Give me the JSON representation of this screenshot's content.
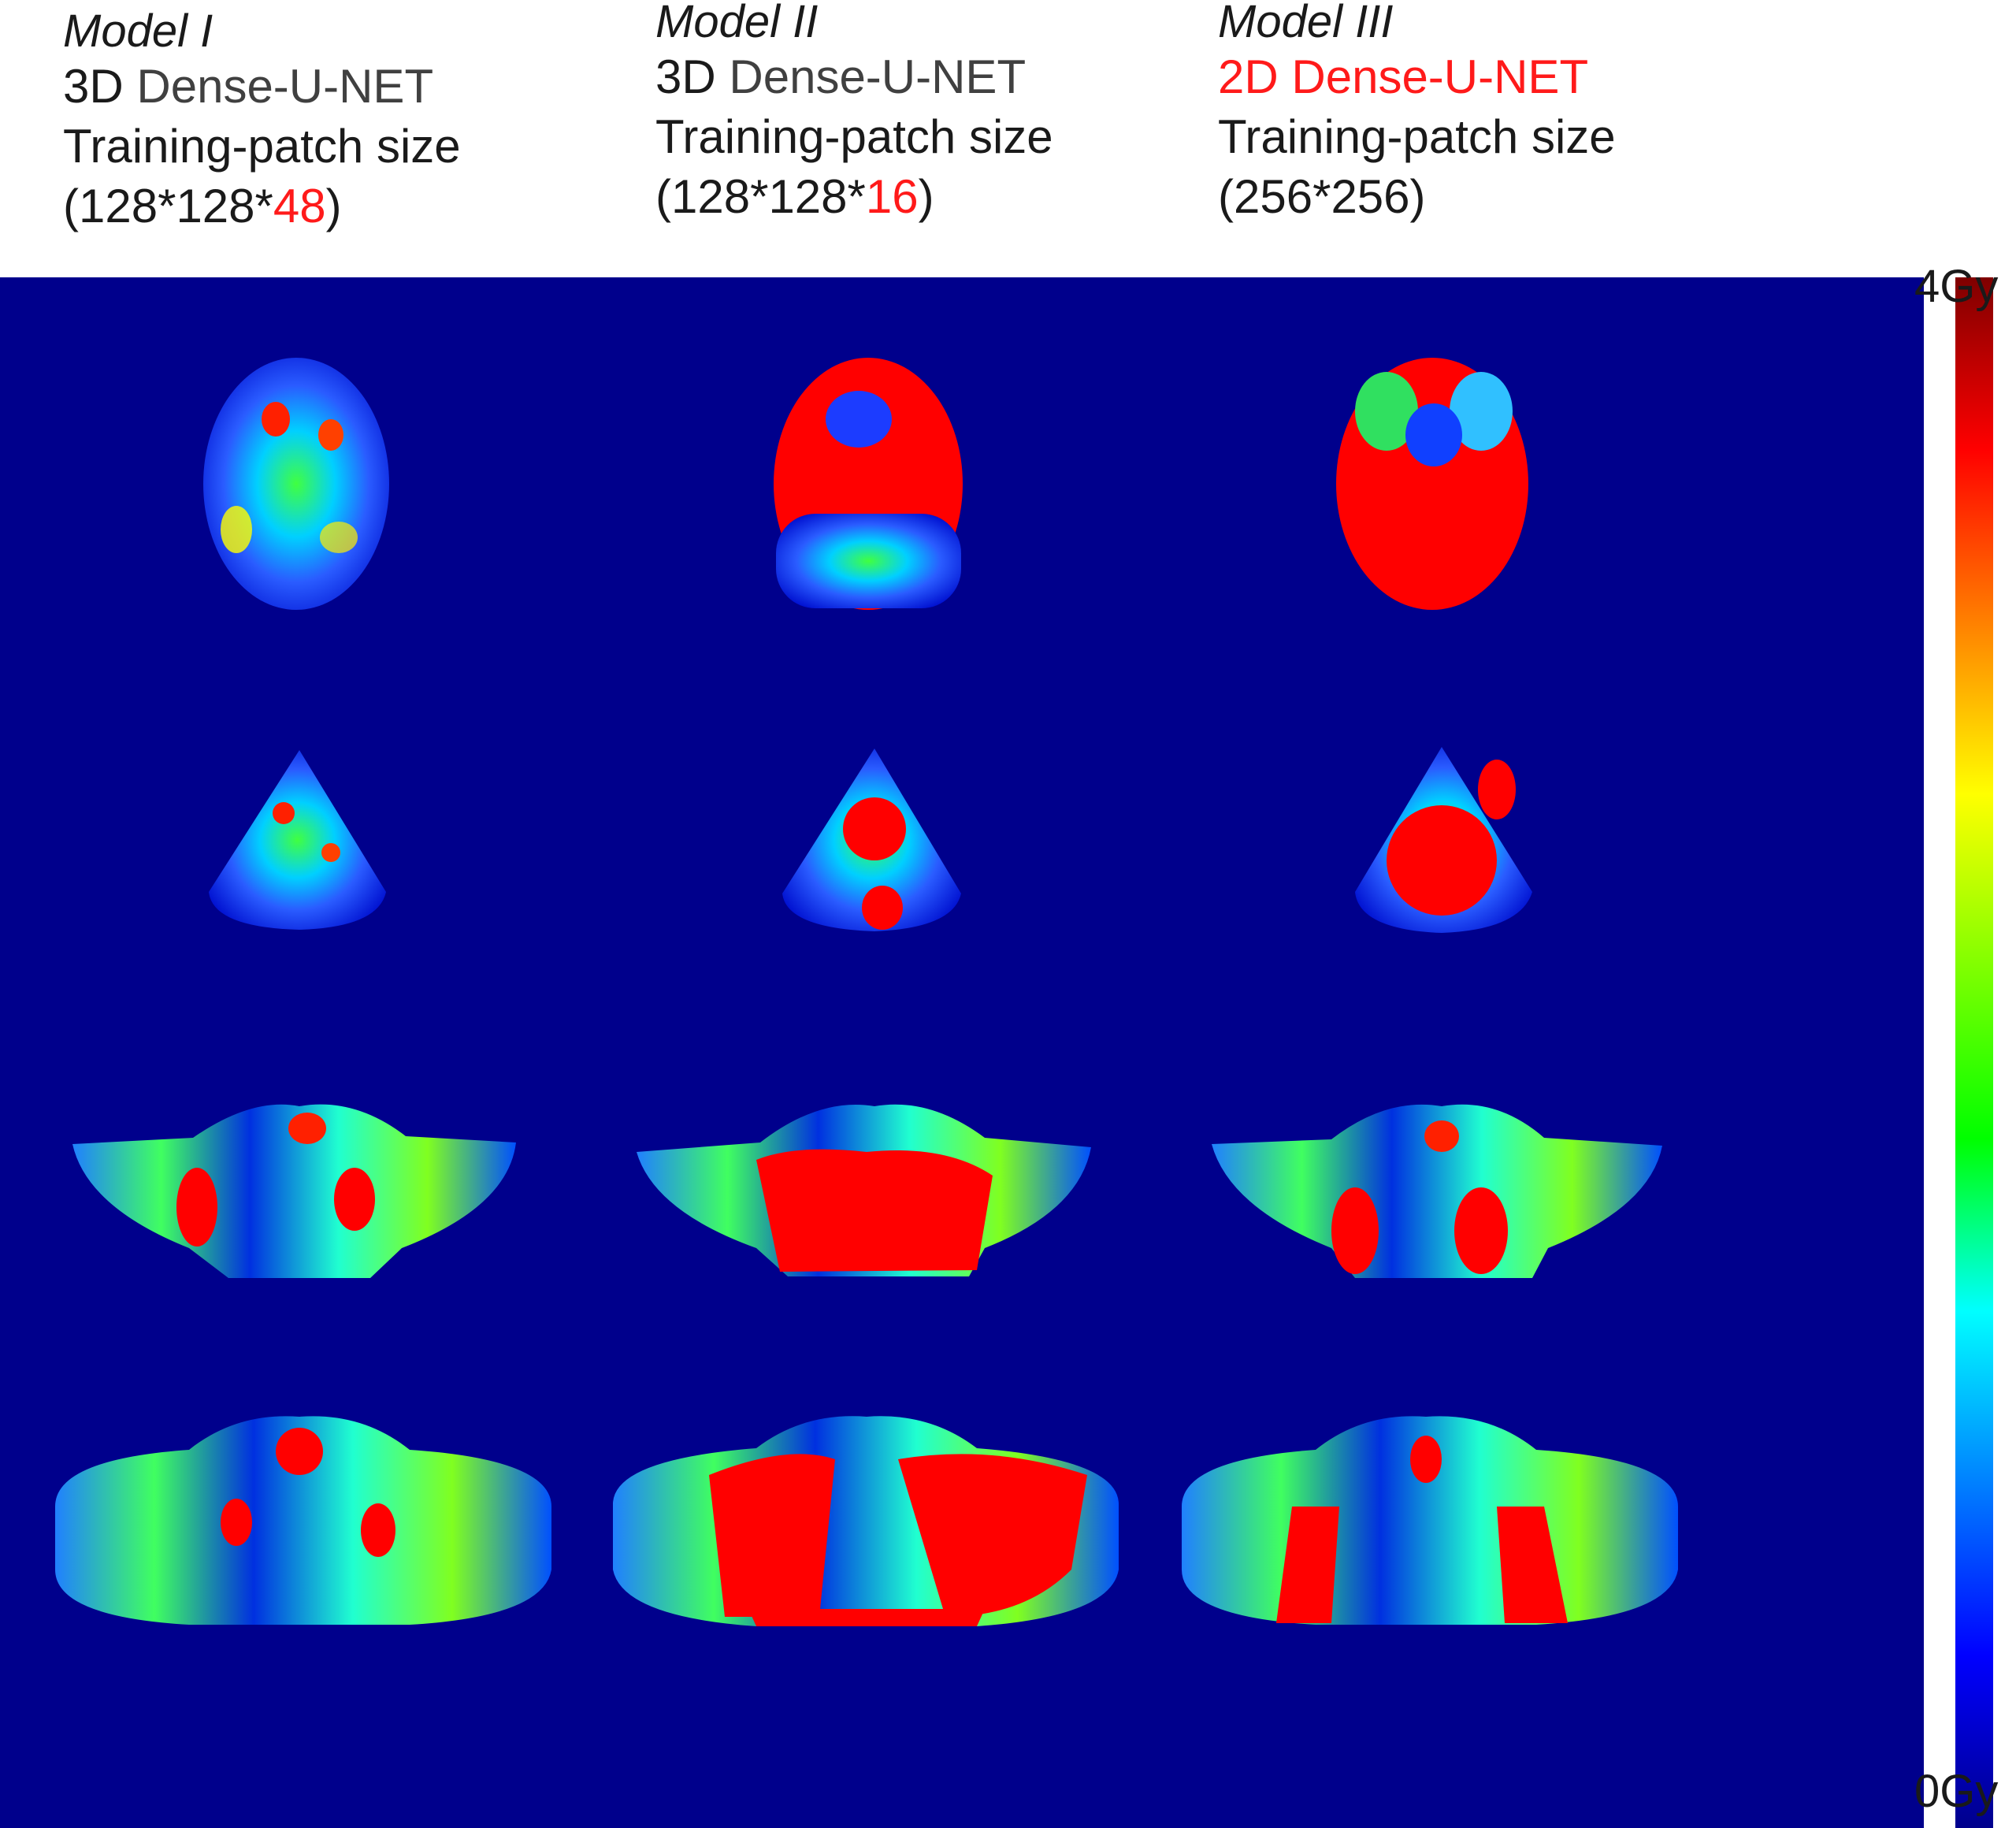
{
  "columns": [
    {
      "model": "Model  I",
      "arch_prefix": "3D",
      "arch_rest": " Dense-U-NET",
      "patch_label": "Training-patch size",
      "patch_open": "(128*128*",
      "patch_highlight": "48",
      "patch_close": ")"
    },
    {
      "model": "Model  II",
      "arch_prefix": "3D",
      "arch_rest": " Dense-U-NET",
      "patch_label": "Training-patch size",
      "patch_open": "(128*128*",
      "patch_highlight": "16",
      "patch_close": ")"
    },
    {
      "model": "Model  III",
      "arch_full": "2D Dense-U-NET",
      "patch_label": "Training-patch size",
      "patch_value": "(256*256)"
    }
  ],
  "colorbar": {
    "max_label": "4Gy",
    "min_label": "0Gy",
    "stops": [
      "#7f0000",
      "#ff0000",
      "#ff8000",
      "#ffff00",
      "#80ff00",
      "#00ff00",
      "#00ffff",
      "#0080ff",
      "#0000ff",
      "#00008c"
    ]
  },
  "colors": {
    "background": "#00008c",
    "high_dose": "#ff0000"
  }
}
